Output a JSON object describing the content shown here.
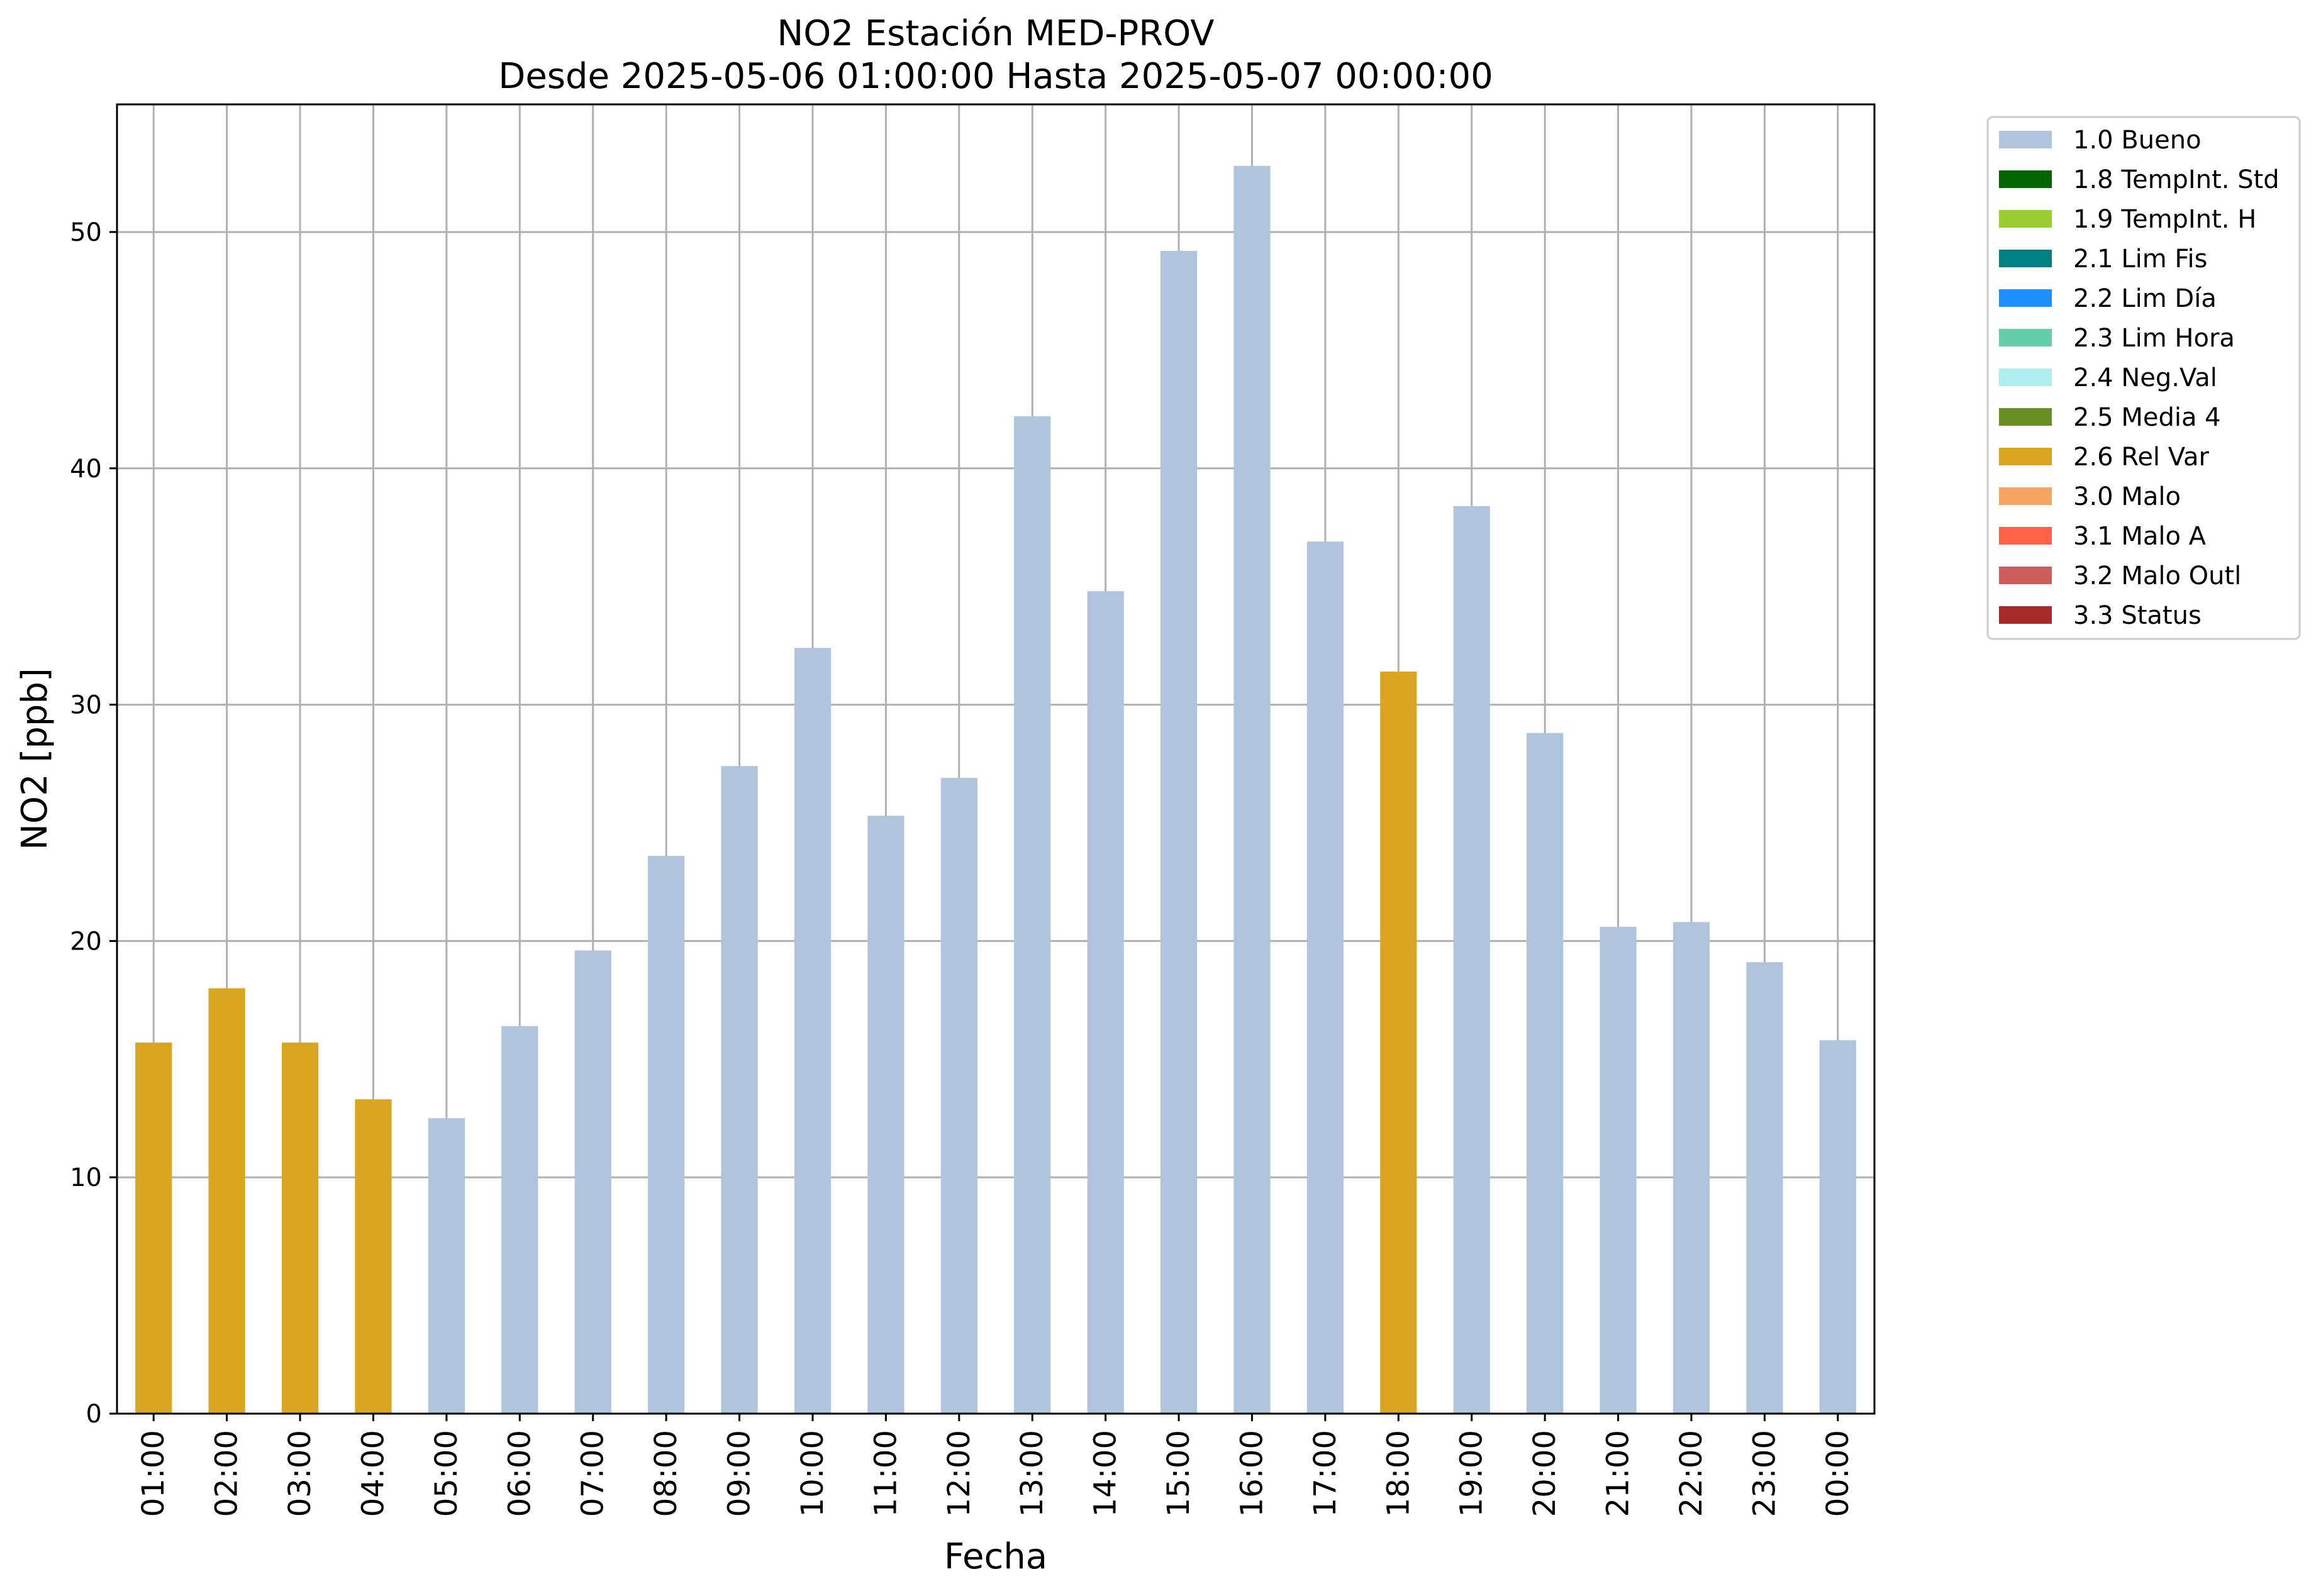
{
  "chart_data": {
    "type": "bar",
    "title": "NO2 Estación MED-PROV",
    "subtitle": "Desde 2025-05-06 01:00:00 Hasta 2025-05-07 00:00:00",
    "xlabel": "Fecha",
    "ylabel": "NO2 [ppb]",
    "ylim": [
      0,
      55.4
    ],
    "yticks": [
      0,
      10,
      20,
      30,
      40,
      50
    ],
    "grid": true,
    "legend_position": "outside-right-top",
    "categories": [
      "01:00",
      "02:00",
      "03:00",
      "04:00",
      "05:00",
      "06:00",
      "07:00",
      "08:00",
      "09:00",
      "10:00",
      "11:00",
      "12:00",
      "13:00",
      "14:00",
      "15:00",
      "16:00",
      "17:00",
      "18:00",
      "19:00",
      "20:00",
      "21:00",
      "22:00",
      "23:00",
      "00:00"
    ],
    "values": [
      15.7,
      18.0,
      15.7,
      13.3,
      12.5,
      16.4,
      19.6,
      23.6,
      27.4,
      32.4,
      25.3,
      26.9,
      42.2,
      34.8,
      49.2,
      52.8,
      36.9,
      31.4,
      38.4,
      28.8,
      20.6,
      20.8,
      19.1,
      15.8
    ],
    "flags": [
      "2.6 Rel Var",
      "2.6 Rel Var",
      "2.6 Rel Var",
      "2.6 Rel Var",
      "1.0 Bueno",
      "1.0 Bueno",
      "1.0 Bueno",
      "1.0 Bueno",
      "1.0 Bueno",
      "1.0 Bueno",
      "1.0 Bueno",
      "1.0 Bueno",
      "1.0 Bueno",
      "1.0 Bueno",
      "1.0 Bueno",
      "1.0 Bueno",
      "1.0 Bueno",
      "2.6 Rel Var",
      "1.0 Bueno",
      "1.0 Bueno",
      "1.0 Bueno",
      "1.0 Bueno",
      "1.0 Bueno",
      "1.0 Bueno"
    ],
    "legend": [
      {
        "label": "1.0 Bueno",
        "color": "#b0c4de"
      },
      {
        "label": "1.8 TempInt. Std",
        "color": "#006400"
      },
      {
        "label": "1.9 TempInt. H",
        "color": "#9acd32"
      },
      {
        "label": "2.1 Lim Fis",
        "color": "#008080"
      },
      {
        "label": "2.2 Lim Día",
        "color": "#1e90ff"
      },
      {
        "label": "2.3 Lim Hora",
        "color": "#66cdaa"
      },
      {
        "label": "2.4 Neg.Val",
        "color": "#afeeee"
      },
      {
        "label": "2.5 Media 4",
        "color": "#6b8e23"
      },
      {
        "label": "2.6 Rel Var",
        "color": "#daa520"
      },
      {
        "label": "3.0 Malo",
        "color": "#f4a460"
      },
      {
        "label": "3.1 Malo A",
        "color": "#ff6347"
      },
      {
        "label": "3.2 Malo Outl",
        "color": "#cd5c5c"
      },
      {
        "label": "3.3 Status",
        "color": "#a52a2a"
      }
    ]
  }
}
